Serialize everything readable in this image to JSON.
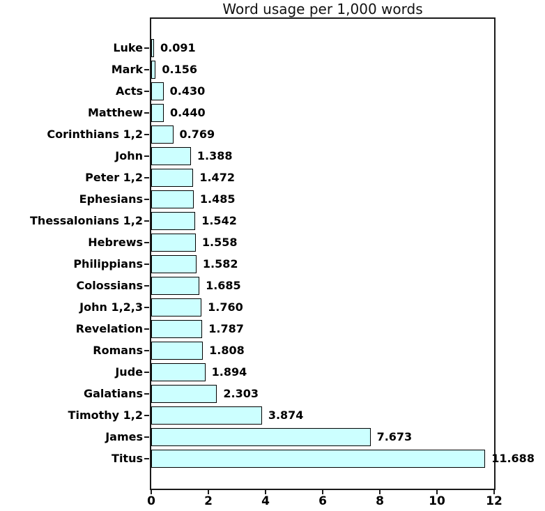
{
  "chart_data": {
    "type": "bar",
    "orientation": "horizontal",
    "title": "Word usage per 1,000 words",
    "categories": [
      "Luke",
      "Mark",
      "Acts",
      "Matthew",
      "Corinthians 1,2",
      "John",
      "Peter 1,2",
      "Ephesians",
      "Thessalonians 1,2",
      "Hebrews",
      "Philippians",
      "Colossians",
      "John 1,2,3",
      "Revelation",
      "Romans",
      "Jude",
      "Galatians",
      "Timothy 1,2",
      "James",
      "Titus"
    ],
    "values": [
      0.091,
      0.156,
      0.43,
      0.44,
      0.769,
      1.388,
      1.472,
      1.485,
      1.542,
      1.558,
      1.582,
      1.685,
      1.76,
      1.787,
      1.808,
      1.894,
      2.303,
      3.874,
      7.673,
      11.688
    ],
    "value_labels": [
      "0.091",
      "0.156",
      "0.430",
      "0.440",
      "0.769",
      "1.388",
      "1.472",
      "1.485",
      "1.542",
      "1.558",
      "1.582",
      "1.685",
      "1.760",
      "1.787",
      "1.808",
      "1.894",
      "2.303",
      "3.874",
      "7.673",
      "11.688"
    ],
    "xlabel": "",
    "ylabel": "",
    "xlim": [
      0,
      12
    ],
    "x_ticks": [
      "0",
      "2",
      "4",
      "6",
      "8",
      "10",
      "12"
    ],
    "grid": false,
    "legend": false,
    "bar_color": "#CCFFFF",
    "bar_border_color": "#000000",
    "axis_color": "#1a1a1a",
    "text_color": "#000000"
  }
}
